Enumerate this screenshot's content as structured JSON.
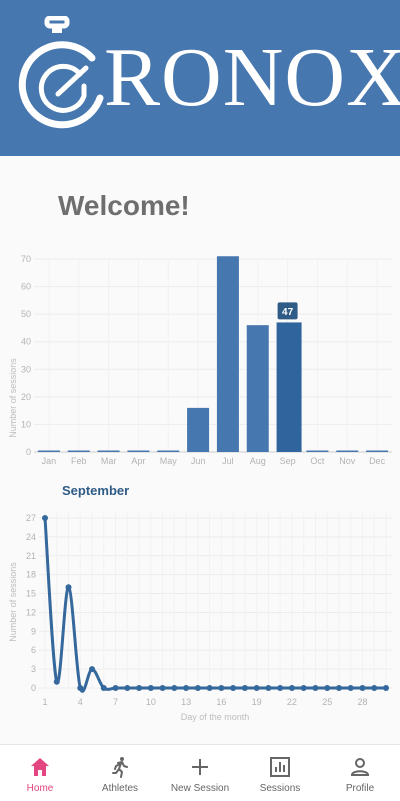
{
  "header": {
    "logo_text": "RONOX",
    "logo_icon": "stopwatch-icon"
  },
  "welcome": {
    "title": "Welcome!"
  },
  "monthly_chart": {
    "ylabel": "Number of sessions",
    "highlight_label": "47"
  },
  "daily_chart": {
    "title": "September",
    "ylabel": "Number of sessions",
    "xlabel": "Day of the month"
  },
  "chart_data": [
    {
      "type": "bar",
      "title": "",
      "ylabel": "Number of sessions",
      "xlabel": "",
      "categories": [
        "Jan",
        "Feb",
        "Mar",
        "Apr",
        "May",
        "Jun",
        "Jul",
        "Aug",
        "Sep",
        "Oct",
        "Nov",
        "Dec"
      ],
      "values": [
        0,
        0,
        0,
        0,
        0,
        16,
        71,
        46,
        47,
        0,
        0,
        0
      ],
      "highlighted_category": "Sep",
      "data_labels": {
        "Sep": 47
      },
      "y_ticks": [
        0,
        10,
        20,
        30,
        40,
        50,
        60,
        70
      ],
      "ylim": [
        0,
        70
      ],
      "grid": true,
      "colors": {
        "bar": "#4677ae",
        "highlight": "#2f649d",
        "label_bg": "#2f5b87"
      }
    },
    {
      "type": "line",
      "title": "September",
      "xlabel": "Day of the month",
      "ylabel": "Number of sessions",
      "x": [
        1,
        2,
        3,
        4,
        5,
        6,
        7,
        8,
        9,
        10,
        11,
        12,
        13,
        14,
        15,
        16,
        17,
        18,
        19,
        20,
        21,
        22,
        23,
        24,
        25,
        26,
        27,
        28,
        29,
        30
      ],
      "values": [
        27,
        1,
        16,
        0,
        3,
        0,
        0,
        0,
        0,
        0,
        0,
        0,
        0,
        0,
        0,
        0,
        0,
        0,
        0,
        0,
        0,
        0,
        0,
        0,
        0,
        0,
        0,
        0,
        0,
        0
      ],
      "x_ticks": [
        1,
        4,
        7,
        10,
        13,
        16,
        19,
        22,
        25,
        28
      ],
      "y_ticks": [
        0,
        3,
        6,
        9,
        12,
        15,
        18,
        21,
        24,
        27
      ],
      "xlim": [
        1,
        30
      ],
      "ylim": [
        0,
        27
      ],
      "grid": true,
      "colors": {
        "line": "#35689c"
      }
    }
  ],
  "tabs": [
    {
      "label": "Home",
      "icon": "home-icon",
      "active": true
    },
    {
      "label": "Athletes",
      "icon": "runner-icon",
      "active": false
    },
    {
      "label": "New Session",
      "icon": "plus-icon",
      "active": false
    },
    {
      "label": "Sessions",
      "icon": "bar-chart-icon",
      "active": false
    },
    {
      "label": "Profile",
      "icon": "person-icon",
      "active": false
    }
  ],
  "colors": {
    "header_bg": "#4677ae",
    "active_tab": "#e2457f"
  }
}
